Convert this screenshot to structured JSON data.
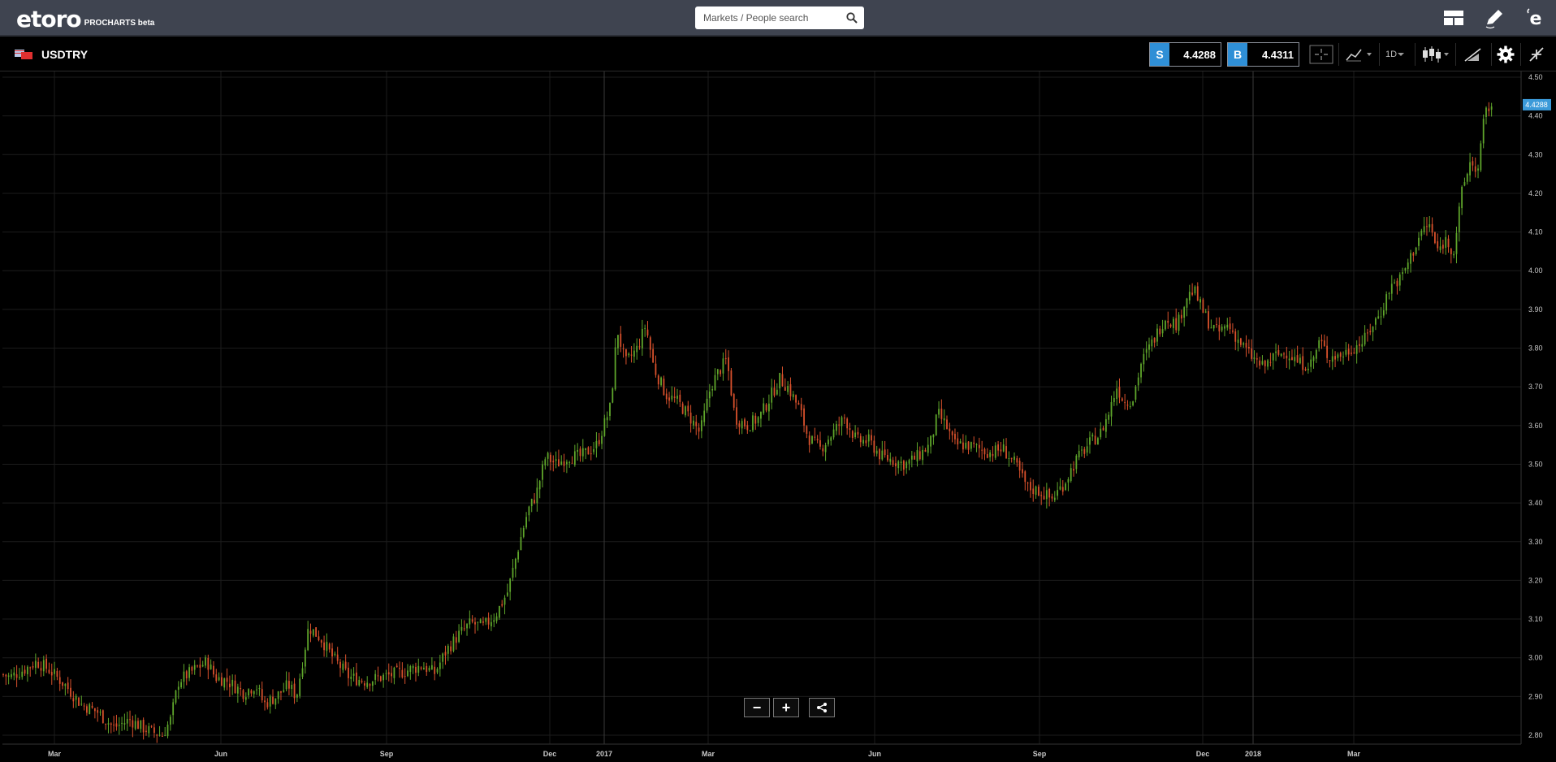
{
  "app": {
    "logo_text": "etoro",
    "logo_sub": "PROCHARTS beta"
  },
  "search": {
    "placeholder": "Markets / People search"
  },
  "top_icons": [
    "layout-icon",
    "pencil-icon",
    "etoro-e-icon"
  ],
  "instrument": {
    "symbol": "USDTRY",
    "sell_label": "S",
    "sell_price": "4.4288",
    "buy_label": "B",
    "buy_price": "4.4311",
    "timeframe": "1D"
  },
  "colors": {
    "up": "#5fa62b",
    "down": "#d9512c",
    "accent": "#2f8fd6",
    "price_label": "#3b9ad9"
  },
  "zoom": {
    "minus": "−",
    "plus": "+"
  },
  "chart_data": {
    "type": "candlestick",
    "symbol": "USDTRY",
    "timeframe": "1D",
    "y_ticks": [
      "4.50",
      "4.40",
      "4.30",
      "4.20",
      "4.10",
      "4.00",
      "3.90",
      "3.80",
      "3.70",
      "3.60",
      "3.50",
      "3.40",
      "3.30",
      "3.20",
      "3.10",
      "3.00",
      "2.90",
      "2.80"
    ],
    "ylim": [
      2.78,
      4.51
    ],
    "x_ticks": [
      "Mar",
      "Jun",
      "Sep",
      "Dec",
      "2017",
      "Mar",
      "Jun",
      "Sep",
      "Dec",
      "2018",
      "Mar"
    ],
    "current_price_label": "4.4288",
    "current_price": 4.4288,
    "grid": true,
    "path": [
      [
        0,
        2.96
      ],
      [
        12,
        2.95
      ],
      [
        30,
        2.97
      ],
      [
        45,
        2.99
      ],
      [
        60,
        2.97
      ],
      [
        80,
        2.93
      ],
      [
        100,
        2.88
      ],
      [
        120,
        2.86
      ],
      [
        140,
        2.82
      ],
      [
        160,
        2.84
      ],
      [
        175,
        2.82
      ],
      [
        185,
        2.81
      ],
      [
        200,
        2.8
      ],
      [
        210,
        2.84
      ],
      [
        220,
        2.94
      ],
      [
        240,
        2.97
      ],
      [
        255,
        2.99
      ],
      [
        265,
        2.95
      ],
      [
        280,
        2.94
      ],
      [
        300,
        2.91
      ],
      [
        315,
        2.93
      ],
      [
        325,
        2.88
      ],
      [
        340,
        2.9
      ],
      [
        355,
        2.93
      ],
      [
        365,
        2.9
      ],
      [
        380,
        3.08
      ],
      [
        395,
        3.05
      ],
      [
        410,
        3.0
      ],
      [
        430,
        2.95
      ],
      [
        450,
        2.94
      ],
      [
        470,
        2.95
      ],
      [
        490,
        2.96
      ],
      [
        505,
        2.97
      ],
      [
        520,
        2.98
      ],
      [
        535,
        2.96
      ],
      [
        550,
        3.02
      ],
      [
        565,
        3.06
      ],
      [
        580,
        3.09
      ],
      [
        595,
        3.08
      ],
      [
        610,
        3.11
      ],
      [
        625,
        3.17
      ],
      [
        640,
        3.3
      ],
      [
        650,
        3.38
      ],
      [
        660,
        3.42
      ],
      [
        672,
        3.52
      ],
      [
        685,
        3.5
      ],
      [
        700,
        3.52
      ],
      [
        715,
        3.52
      ],
      [
        735,
        3.55
      ],
      [
        752,
        3.65
      ],
      [
        760,
        3.85
      ],
      [
        770,
        3.76
      ],
      [
        785,
        3.8
      ],
      [
        795,
        3.86
      ],
      [
        805,
        3.75
      ],
      [
        820,
        3.68
      ],
      [
        835,
        3.66
      ],
      [
        850,
        3.62
      ],
      [
        862,
        3.58
      ],
      [
        875,
        3.7
      ],
      [
        885,
        3.74
      ],
      [
        895,
        3.77
      ],
      [
        905,
        3.62
      ],
      [
        920,
        3.6
      ],
      [
        935,
        3.62
      ],
      [
        950,
        3.68
      ],
      [
        960,
        3.72
      ],
      [
        970,
        3.7
      ],
      [
        985,
        3.64
      ],
      [
        995,
        3.57
      ],
      [
        1010,
        3.54
      ],
      [
        1025,
        3.58
      ],
      [
        1040,
        3.62
      ],
      [
        1055,
        3.56
      ],
      [
        1070,
        3.56
      ],
      [
        1085,
        3.52
      ],
      [
        1100,
        3.51
      ],
      [
        1115,
        3.5
      ],
      [
        1130,
        3.52
      ],
      [
        1145,
        3.55
      ],
      [
        1155,
        3.63
      ],
      [
        1165,
        3.6
      ],
      [
        1175,
        3.55
      ],
      [
        1190,
        3.55
      ],
      [
        1205,
        3.54
      ],
      [
        1220,
        3.53
      ],
      [
        1235,
        3.54
      ],
      [
        1250,
        3.5
      ],
      [
        1265,
        3.44
      ],
      [
        1280,
        3.43
      ],
      [
        1295,
        3.41
      ],
      [
        1310,
        3.45
      ],
      [
        1325,
        3.51
      ],
      [
        1340,
        3.55
      ],
      [
        1355,
        3.58
      ],
      [
        1365,
        3.63
      ],
      [
        1375,
        3.7
      ],
      [
        1385,
        3.66
      ],
      [
        1395,
        3.67
      ],
      [
        1405,
        3.76
      ],
      [
        1420,
        3.82
      ],
      [
        1435,
        3.88
      ],
      [
        1450,
        3.86
      ],
      [
        1460,
        3.93
      ],
      [
        1470,
        3.95
      ],
      [
        1480,
        3.9
      ],
      [
        1490,
        3.86
      ],
      [
        1500,
        3.84
      ],
      [
        1512,
        3.86
      ],
      [
        1525,
        3.82
      ],
      [
        1540,
        3.78
      ],
      [
        1555,
        3.75
      ],
      [
        1570,
        3.78
      ],
      [
        1585,
        3.79
      ],
      [
        1600,
        3.76
      ],
      [
        1615,
        3.76
      ],
      [
        1625,
        3.82
      ],
      [
        1635,
        3.78
      ],
      [
        1650,
        3.78
      ],
      [
        1665,
        3.8
      ],
      [
        1680,
        3.82
      ],
      [
        1690,
        3.86
      ],
      [
        1700,
        3.89
      ],
      [
        1712,
        3.96
      ],
      [
        1725,
        3.98
      ],
      [
        1740,
        4.05
      ],
      [
        1750,
        4.1
      ],
      [
        1760,
        4.12
      ],
      [
        1770,
        4.05
      ],
      [
        1780,
        4.08
      ],
      [
        1790,
        4.05
      ],
      [
        1800,
        4.2
      ],
      [
        1810,
        4.28
      ],
      [
        1820,
        4.26
      ],
      [
        1828,
        4.4
      ],
      [
        1835,
        4.43
      ],
      [
        1838,
        4.43
      ]
    ]
  }
}
